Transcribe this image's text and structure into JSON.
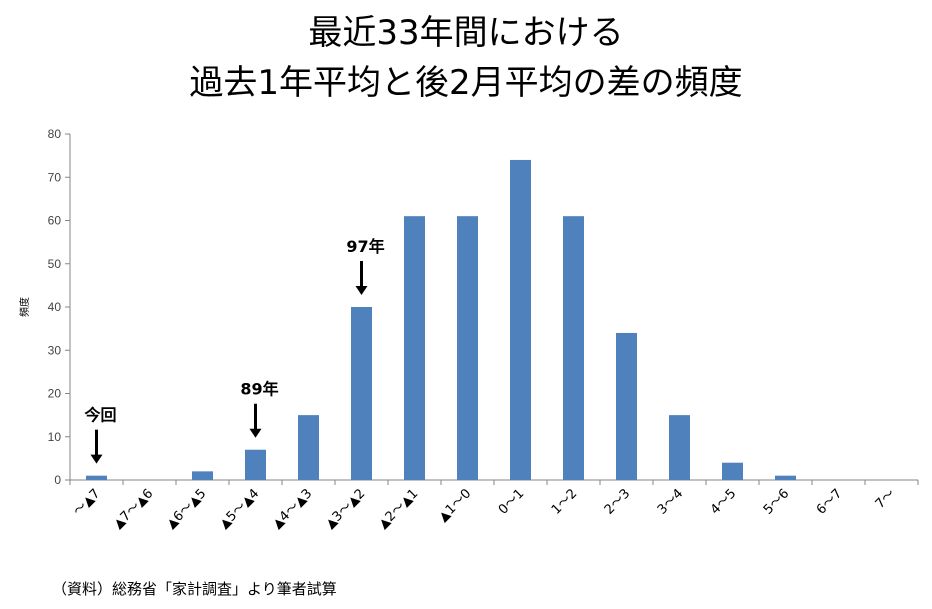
{
  "chart_data": {
    "type": "bar",
    "title_line1": "最近33年間における",
    "title_line2": "過去1年平均と後2月平均の差の頻度",
    "ylabel": "頻度",
    "xlabel": "",
    "ylim": [
      0,
      80
    ],
    "yticks": [
      0,
      10,
      20,
      30,
      40,
      50,
      60,
      70,
      80
    ],
    "categories": [
      "～▲7",
      "▲7～▲6",
      "▲6～▲5",
      "▲5～▲4",
      "▲4～▲3",
      "▲3～▲2",
      "▲2～▲1",
      "▲1～0",
      "0～1",
      "1～2",
      "2～3",
      "3～4",
      "4～5",
      "5～6",
      "6～7",
      "7～"
    ],
    "series": [
      {
        "values": [
          1,
          0,
          2,
          7,
          15,
          40,
          61,
          61,
          74,
          61,
          34,
          15,
          4,
          1,
          0,
          0
        ]
      }
    ],
    "bar_color": "#4f81bd",
    "grid": false,
    "annotations": [
      {
        "label": "今回",
        "category_index": 0
      },
      {
        "label": "89年",
        "category_index": 3
      },
      {
        "label": "97年",
        "category_index": 5
      }
    ]
  },
  "source": "（資料）総務省「家計調査」より筆者試算"
}
